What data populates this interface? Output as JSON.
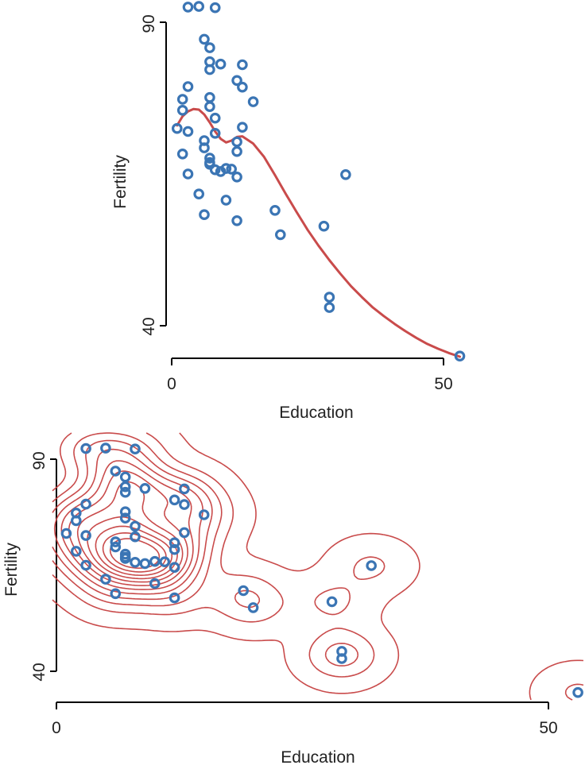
{
  "colors": {
    "points": "#3b75b4",
    "fit": "#c94b4b",
    "axis": "#000000"
  },
  "chart_data": [
    {
      "type": "scatter",
      "title": "",
      "xlabel": "Education",
      "ylabel": "Fertility",
      "x_ticks": [
        "0",
        "50"
      ],
      "y_ticks": [
        "90",
        "40"
      ],
      "x_tick_values": [
        0,
        50
      ],
      "y_tick_values": [
        90,
        40
      ],
      "xlim": [
        0,
        53
      ],
      "ylim": [
        35,
        93
      ],
      "grid": false,
      "legend": "none",
      "points": [
        {
          "x": 3,
          "y": 92.5
        },
        {
          "x": 5,
          "y": 92.6
        },
        {
          "x": 8,
          "y": 92.4
        },
        {
          "x": 6,
          "y": 87.2
        },
        {
          "x": 7,
          "y": 85.8
        },
        {
          "x": 7,
          "y": 83.5
        },
        {
          "x": 7,
          "y": 82.2
        },
        {
          "x": 9,
          "y": 83.1
        },
        {
          "x": 13,
          "y": 83
        },
        {
          "x": 12,
          "y": 80.4
        },
        {
          "x": 13,
          "y": 79.3
        },
        {
          "x": 3,
          "y": 79.4
        },
        {
          "x": 2,
          "y": 77.3
        },
        {
          "x": 7,
          "y": 77.6
        },
        {
          "x": 7,
          "y": 76.1
        },
        {
          "x": 15,
          "y": 76.9
        },
        {
          "x": 2,
          "y": 75.5
        },
        {
          "x": 8,
          "y": 74.2
        },
        {
          "x": 1,
          "y": 72.5
        },
        {
          "x": 3,
          "y": 72.0
        },
        {
          "x": 13,
          "y": 72.7
        },
        {
          "x": 8,
          "y": 71.7
        },
        {
          "x": 6,
          "y": 70.5
        },
        {
          "x": 12,
          "y": 70.3
        },
        {
          "x": 6,
          "y": 69.3
        },
        {
          "x": 12,
          "y": 68.7
        },
        {
          "x": 2,
          "y": 68.3
        },
        {
          "x": 7,
          "y": 67.6
        },
        {
          "x": 7,
          "y": 66.9
        },
        {
          "x": 7,
          "y": 66.6
        },
        {
          "x": 8,
          "y": 65.7
        },
        {
          "x": 9,
          "y": 65.4
        },
        {
          "x": 10,
          "y": 65.9
        },
        {
          "x": 11,
          "y": 65.8
        },
        {
          "x": 3,
          "y": 65.0
        },
        {
          "x": 12,
          "y": 64.5
        },
        {
          "x": 5,
          "y": 61.7
        },
        {
          "x": 10,
          "y": 60.7
        },
        {
          "x": 6,
          "y": 58.3
        },
        {
          "x": 19,
          "y": 59.0
        },
        {
          "x": 12,
          "y": 57.3
        },
        {
          "x": 28,
          "y": 56.4
        },
        {
          "x": 20,
          "y": 55.0
        },
        {
          "x": 32,
          "y": 64.9
        },
        {
          "x": 29,
          "y": 44.7
        },
        {
          "x": 29,
          "y": 43.0
        },
        {
          "x": 53,
          "y": 35.0
        }
      ],
      "fit_curve": {
        "x": [
          1,
          2,
          3,
          4,
          5,
          6,
          7,
          8,
          9,
          10,
          11,
          12,
          13,
          15,
          17,
          19,
          21,
          23,
          25,
          27,
          29,
          31,
          33,
          35,
          37,
          39,
          41,
          43,
          45,
          47,
          49,
          51,
          53
        ],
        "y": [
          73.0,
          74.5,
          75.3,
          75.7,
          75.6,
          74.8,
          73.5,
          72.0,
          70.8,
          70.2,
          70.5,
          71.1,
          71.2,
          70.0,
          67.8,
          64.8,
          61.7,
          58.7,
          55.8,
          53.2,
          50.8,
          48.6,
          46.5,
          44.7,
          43.0,
          41.6,
          40.3,
          39.1,
          38.0,
          37.0,
          36.2,
          35.5,
          34.9
        ]
      }
    },
    {
      "type": "scatter",
      "title": "",
      "xlabel": "Education",
      "ylabel": "Fertility",
      "x_ticks": [
        "0",
        "50"
      ],
      "y_ticks": [
        "90",
        "40"
      ],
      "x_tick_values": [
        0,
        50
      ],
      "y_tick_values": [
        90,
        40
      ],
      "xlim": [
        0,
        53
      ],
      "ylim": [
        35,
        93
      ],
      "grid": false,
      "legend": "none",
      "contour_levels": 12,
      "points": [
        {
          "x": 3,
          "y": 92.5
        },
        {
          "x": 5,
          "y": 92.6
        },
        {
          "x": 8,
          "y": 92.4
        },
        {
          "x": 6,
          "y": 87.2
        },
        {
          "x": 7,
          "y": 85.8
        },
        {
          "x": 7,
          "y": 83.5
        },
        {
          "x": 7,
          "y": 82.2
        },
        {
          "x": 9,
          "y": 83.1
        },
        {
          "x": 13,
          "y": 83
        },
        {
          "x": 12,
          "y": 80.4
        },
        {
          "x": 13,
          "y": 79.3
        },
        {
          "x": 3,
          "y": 79.4
        },
        {
          "x": 2,
          "y": 77.3
        },
        {
          "x": 7,
          "y": 77.6
        },
        {
          "x": 7,
          "y": 76.1
        },
        {
          "x": 15,
          "y": 76.9
        },
        {
          "x": 2,
          "y": 75.5
        },
        {
          "x": 8,
          "y": 74.2
        },
        {
          "x": 1,
          "y": 72.5
        },
        {
          "x": 3,
          "y": 72.0
        },
        {
          "x": 13,
          "y": 72.7
        },
        {
          "x": 8,
          "y": 71.7
        },
        {
          "x": 6,
          "y": 70.5
        },
        {
          "x": 12,
          "y": 70.3
        },
        {
          "x": 6,
          "y": 69.3
        },
        {
          "x": 12,
          "y": 68.7
        },
        {
          "x": 2,
          "y": 68.3
        },
        {
          "x": 7,
          "y": 67.6
        },
        {
          "x": 7,
          "y": 66.9
        },
        {
          "x": 7,
          "y": 66.6
        },
        {
          "x": 8,
          "y": 65.7
        },
        {
          "x": 9,
          "y": 65.4
        },
        {
          "x": 10,
          "y": 65.9
        },
        {
          "x": 11,
          "y": 65.8
        },
        {
          "x": 3,
          "y": 65.0
        },
        {
          "x": 12,
          "y": 64.5
        },
        {
          "x": 5,
          "y": 61.7
        },
        {
          "x": 10,
          "y": 60.7
        },
        {
          "x": 6,
          "y": 58.3
        },
        {
          "x": 19,
          "y": 59.0
        },
        {
          "x": 12,
          "y": 57.3
        },
        {
          "x": 28,
          "y": 56.4
        },
        {
          "x": 20,
          "y": 55.0
        },
        {
          "x": 32,
          "y": 64.9
        },
        {
          "x": 29,
          "y": 44.7
        },
        {
          "x": 29,
          "y": 43.0
        },
        {
          "x": 53,
          "y": 35.0
        }
      ]
    }
  ]
}
